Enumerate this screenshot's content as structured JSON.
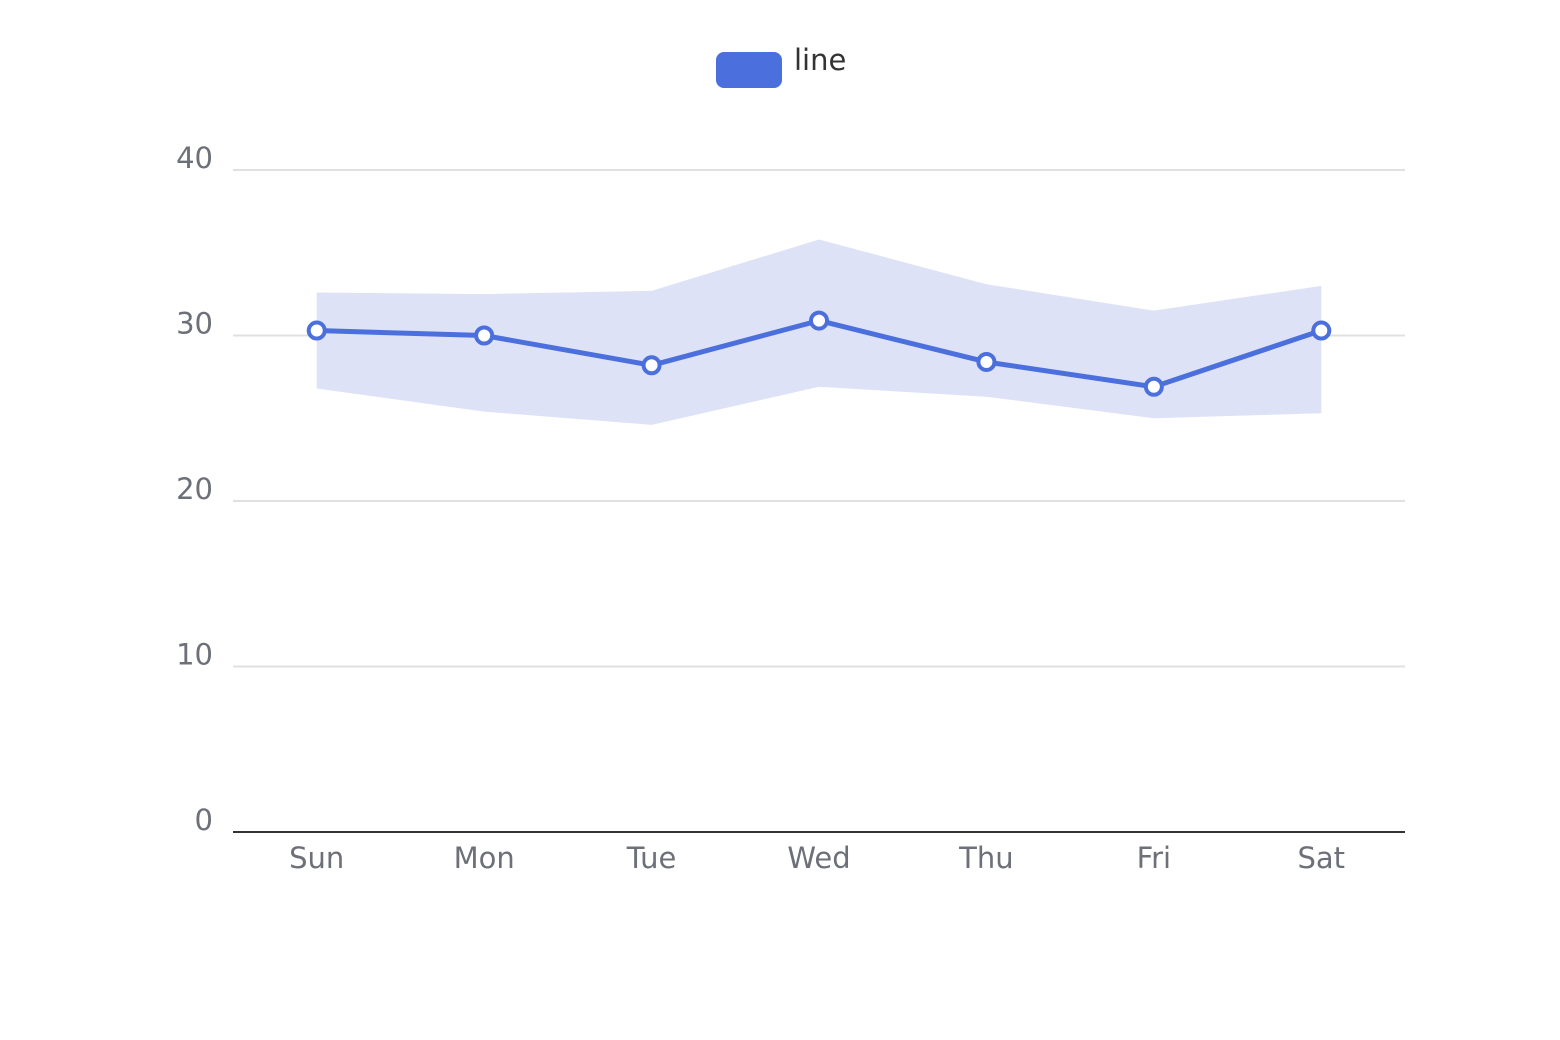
{
  "chart_data": {
    "type": "line",
    "categories": [
      "Sun",
      "Mon",
      "Tue",
      "Wed",
      "Thu",
      "Fri",
      "Sat"
    ],
    "series": [
      {
        "name": "line",
        "values": [
          30.3,
          30.0,
          28.2,
          30.9,
          28.4,
          26.9,
          30.3
        ]
      }
    ],
    "band": {
      "upper": [
        32.6,
        32.5,
        32.7,
        35.8,
        33.1,
        31.5,
        33.0
      ],
      "lower": [
        26.8,
        25.4,
        24.6,
        26.9,
        26.3,
        25.0,
        25.3
      ]
    },
    "yticks": [
      "0",
      "10",
      "20",
      "30",
      "40"
    ],
    "ylim": [
      0,
      40
    ],
    "grid": true,
    "legend": "top-center",
    "colors": {
      "line": "#4b6fdc",
      "band": "#dde2f7",
      "grid": "#e0e0e0",
      "axis": "#333333"
    }
  }
}
